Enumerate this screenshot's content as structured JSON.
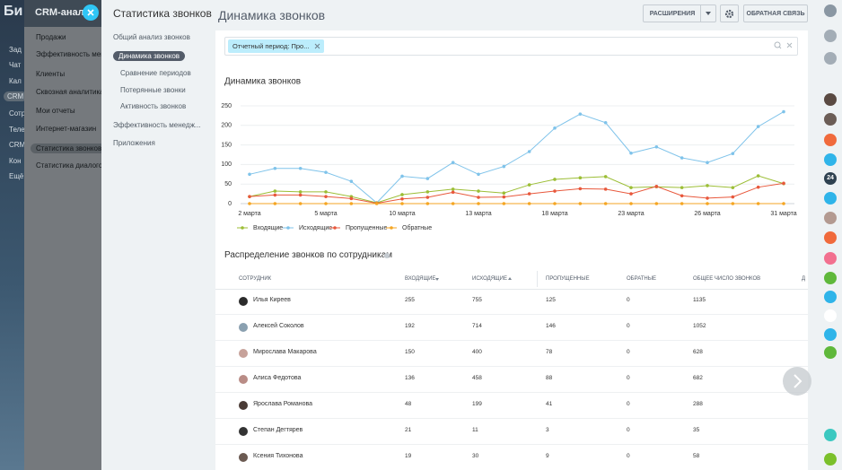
{
  "background_menu": {
    "portal_title": "Би",
    "left_items": [
      "Зад",
      "Чат",
      "Кал",
      "CRM",
      "Сотр",
      "Теле",
      "CRM",
      "Кон",
      "Ещё"
    ],
    "crm_title": "CRM-анали",
    "crm_items": [
      "Продажи",
      "Эффективность мене",
      "Клиенты",
      "Сквозная аналитика",
      "Мои отчеты",
      "Интернет-магазин",
      "Статистика звонков",
      "Статистика диалогов"
    ]
  },
  "sidebar": {
    "title": "Статистика звонков",
    "items": [
      "Общий анализ звонков",
      "Динамика звонков",
      "Сравнение периодов",
      "Потерянные звонки",
      "Активность звонков",
      "Эффективность менедж...",
      "Приложения"
    ]
  },
  "header": {
    "title": "Динамика звонков",
    "extensions": "РАСШИРЕНИЯ",
    "feedback": "ОБРАТНАЯ СВЯЗЬ"
  },
  "filter": {
    "tag": "Отчетный период: Про..."
  },
  "chart_data": {
    "type": "line",
    "title": "Динамика звонков",
    "categories": [
      "2 марта",
      null,
      null,
      "5 марта",
      null,
      null,
      "10 марта",
      null,
      null,
      "13 марта",
      null,
      null,
      "18 марта",
      null,
      null,
      "23 марта",
      null,
      null,
      "26 марта",
      null,
      null,
      "31 марта"
    ],
    "series": [
      {
        "name": "Входящие",
        "color": "#9cbe36",
        "values": [
          18,
          32,
          30,
          30,
          18,
          2,
          23,
          30,
          37,
          32,
          27,
          48,
          62,
          66,
          69,
          41,
          43,
          41,
          46,
          41,
          71,
          51
        ]
      },
      {
        "name": "Исходящие",
        "color": "#7fc3ea",
        "values": [
          75,
          90,
          90,
          80,
          57,
          2,
          70,
          64,
          105,
          75,
          95,
          133,
          193,
          229,
          207,
          129,
          145,
          117,
          105,
          128,
          197,
          235
        ]
      },
      {
        "name": "Пропущенные",
        "color": "#e8583c",
        "values": [
          18,
          22,
          22,
          18,
          13,
          1,
          12,
          16,
          29,
          16,
          17,
          25,
          32,
          38,
          37,
          25,
          44,
          20,
          14,
          17,
          42,
          52
        ]
      },
      {
        "name": "Обратные",
        "color": "#f5a623",
        "values": [
          0,
          0,
          0,
          0,
          0,
          0,
          0,
          0,
          0,
          0,
          0,
          0,
          0,
          0,
          0,
          0,
          0,
          0,
          0,
          0,
          0,
          0
        ]
      }
    ],
    "ylim": [
      0,
      250
    ],
    "yticks": [
      0,
      50,
      100,
      150,
      200,
      250
    ],
    "grid": true
  },
  "table": {
    "title": "Распределение звонков по сотрудникам",
    "columns": [
      "СОТРУДНИК",
      "ВХОДЯЩИЕ",
      "ИСХОДЯЩИЕ",
      "ПРОПУЩЕННЫЕ",
      "ОБРАТНЫЕ",
      "ОБЩЕЕ ЧИСЛО ЗВОНКОВ",
      "Д"
    ],
    "rows": [
      [
        "Илья Киреев",
        255,
        755,
        125,
        0,
        1135
      ],
      [
        "Алексей Соколов",
        192,
        714,
        146,
        0,
        1052
      ],
      [
        "Мирослава Макарова",
        150,
        400,
        78,
        0,
        628
      ],
      [
        "Алиса Федотова",
        136,
        458,
        88,
        0,
        682
      ],
      [
        "Ярослава Романова",
        48,
        199,
        41,
        0,
        288
      ],
      [
        "Степан Дегтярев",
        21,
        11,
        3,
        0,
        35
      ],
      [
        "Ксения Тихонова",
        19,
        30,
        9,
        0,
        58
      ]
    ]
  },
  "right_bar": {
    "badge": "24"
  }
}
